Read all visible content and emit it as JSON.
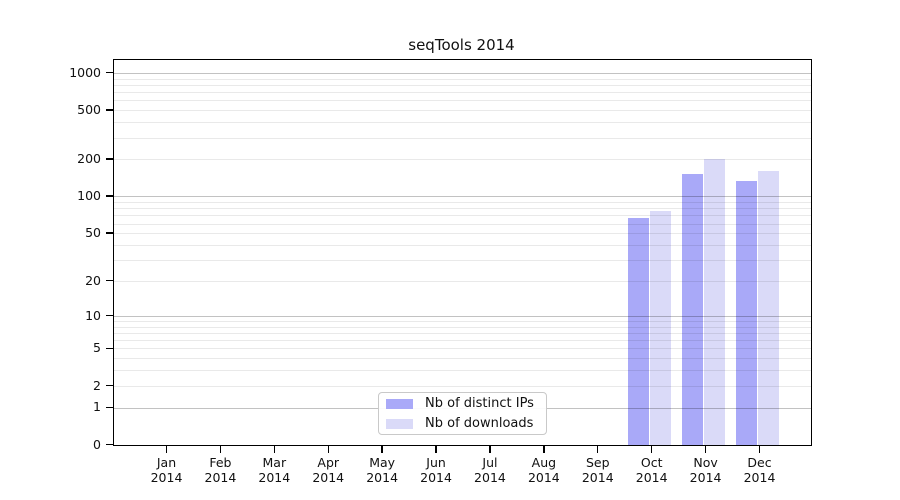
{
  "chart_data": {
    "type": "bar",
    "title": "seqTools 2014",
    "categories": [
      "Jan 2014",
      "Feb 2014",
      "Mar 2014",
      "Apr 2014",
      "May 2014",
      "Jun 2014",
      "Jul 2014",
      "Aug 2014",
      "Sep 2014",
      "Oct 2014",
      "Nov 2014",
      "Dec 2014"
    ],
    "series": [
      {
        "name": "Nb of distinct IPs",
        "color": "#a9a9f8",
        "values": [
          0,
          0,
          0,
          0,
          0,
          0,
          0,
          0,
          0,
          67,
          151,
          134
        ]
      },
      {
        "name": "Nb of downloads",
        "color": "#dadaf8",
        "values": [
          0,
          0,
          0,
          0,
          0,
          0,
          0,
          0,
          0,
          76,
          200,
          161
        ]
      }
    ],
    "yscale": "log1p",
    "ylim": [
      0,
      1270
    ],
    "yticks": [
      0,
      1,
      2,
      5,
      10,
      20,
      50,
      100,
      200,
      500,
      1000
    ],
    "major_gridlines": [
      1,
      10,
      100,
      1000
    ],
    "minor_gridlines": [
      2,
      3,
      4,
      5,
      6,
      7,
      8,
      9,
      20,
      30,
      40,
      50,
      60,
      70,
      80,
      90,
      200,
      300,
      400,
      500,
      600,
      700,
      800,
      900
    ],
    "grid": true,
    "legend": {
      "position": "bottom-center"
    },
    "colors": {
      "axis": "#000000",
      "major_grid": "#c2c2c2",
      "minor_grid": "#ebebeb"
    }
  }
}
